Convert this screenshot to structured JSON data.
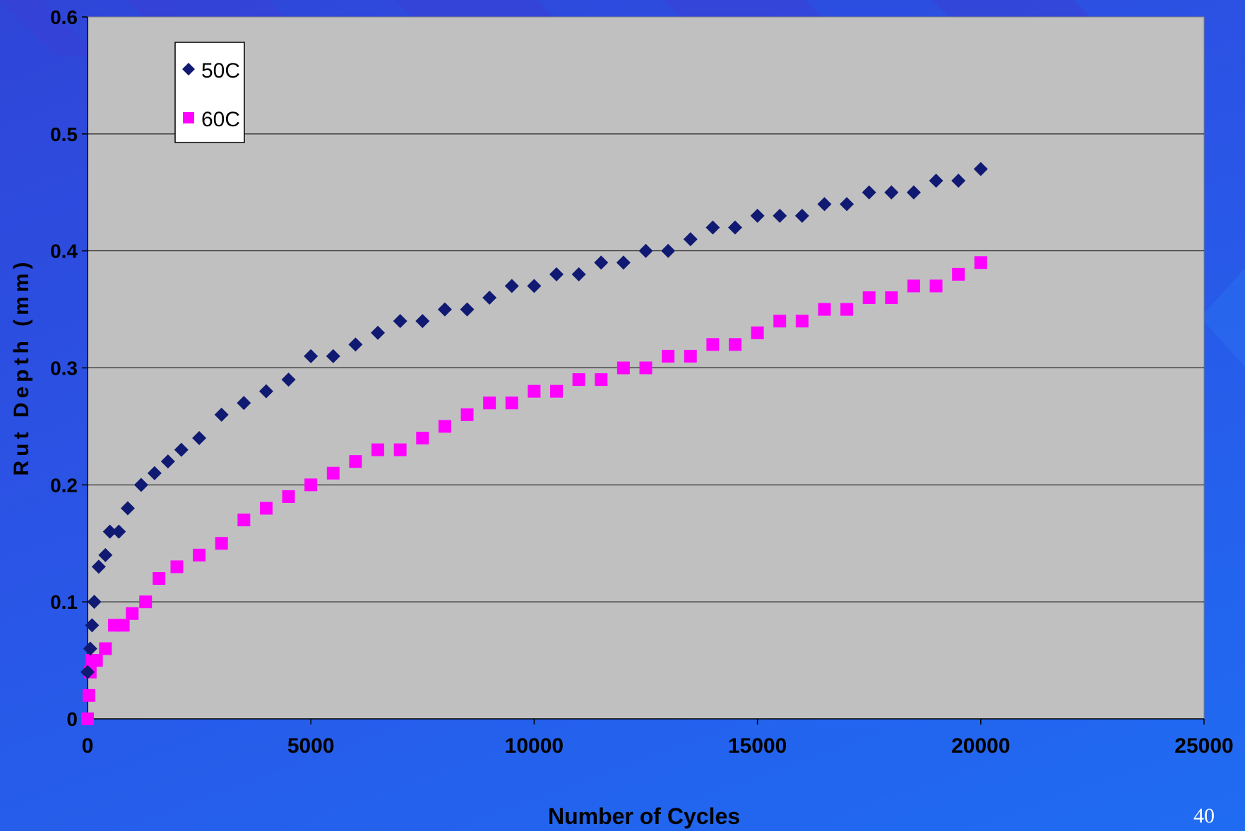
{
  "slide": {
    "number": "40"
  },
  "colors": {
    "plot_bg": "#c0c0c0",
    "series_50C": "#101a72",
    "series_60C": "#ff00ff",
    "axis_text": "#000000"
  },
  "chart_data": {
    "type": "scatter",
    "title": "",
    "xlabel": "Number of Cycles",
    "ylabel": "Rut Depth (mm)",
    "xlim": [
      0,
      25000
    ],
    "ylim": [
      0,
      0.6
    ],
    "xticks": [
      "0",
      "5000",
      "10000",
      "15000",
      "20000",
      "25000"
    ],
    "yticks": [
      "0",
      "0.1",
      "0.2",
      "0.3",
      "0.4",
      "0.5",
      "0.6"
    ],
    "grid": "horizontal",
    "legend": "top-left",
    "series": [
      {
        "name": "50C",
        "marker": "diamond",
        "color": "#101a72",
        "x": [
          0,
          60,
          100,
          150,
          250,
          400,
          500,
          700,
          900,
          1200,
          1500,
          1800,
          2100,
          2500,
          3000,
          3500,
          4000,
          4500,
          5000,
          5500,
          6000,
          6500,
          7000,
          7500,
          8000,
          8500,
          9000,
          9500,
          10000,
          10500,
          11000,
          11500,
          12000,
          12500,
          13000,
          13500,
          14000,
          14500,
          15000,
          15500,
          16000,
          16500,
          17000,
          17500,
          18000,
          18500,
          19000,
          19500,
          20000
        ],
        "y": [
          0.04,
          0.06,
          0.08,
          0.1,
          0.13,
          0.14,
          0.16,
          0.16,
          0.18,
          0.2,
          0.21,
          0.22,
          0.23,
          0.24,
          0.26,
          0.27,
          0.28,
          0.29,
          0.31,
          0.31,
          0.32,
          0.33,
          0.34,
          0.34,
          0.35,
          0.35,
          0.36,
          0.37,
          0.37,
          0.38,
          0.38,
          0.39,
          0.39,
          0.4,
          0.4,
          0.41,
          0.42,
          0.42,
          0.43,
          0.43,
          0.43,
          0.44,
          0.44,
          0.45,
          0.45,
          0.45,
          0.46,
          0.46,
          0.47
        ]
      },
      {
        "name": "60C",
        "marker": "square",
        "color": "#ff00ff",
        "x": [
          0,
          30,
          60,
          100,
          200,
          400,
          600,
          800,
          1000,
          1300,
          1600,
          2000,
          2500,
          3000,
          3500,
          4000,
          4500,
          5000,
          5500,
          6000,
          6500,
          7000,
          7500,
          8000,
          8500,
          9000,
          9500,
          10000,
          10500,
          11000,
          11500,
          12000,
          12500,
          13000,
          13500,
          14000,
          14500,
          15000,
          15500,
          16000,
          16500,
          17000,
          17500,
          18000,
          18500,
          19000,
          19500,
          20000
        ],
        "y": [
          0,
          0.02,
          0.04,
          0.05,
          0.05,
          0.06,
          0.08,
          0.08,
          0.09,
          0.1,
          0.12,
          0.13,
          0.14,
          0.15,
          0.17,
          0.18,
          0.19,
          0.2,
          0.21,
          0.22,
          0.23,
          0.23,
          0.24,
          0.25,
          0.26,
          0.27,
          0.27,
          0.28,
          0.28,
          0.29,
          0.29,
          0.3,
          0.3,
          0.31,
          0.31,
          0.32,
          0.32,
          0.33,
          0.34,
          0.34,
          0.35,
          0.35,
          0.36,
          0.36,
          0.37,
          0.37,
          0.38,
          0.39
        ]
      }
    ]
  }
}
